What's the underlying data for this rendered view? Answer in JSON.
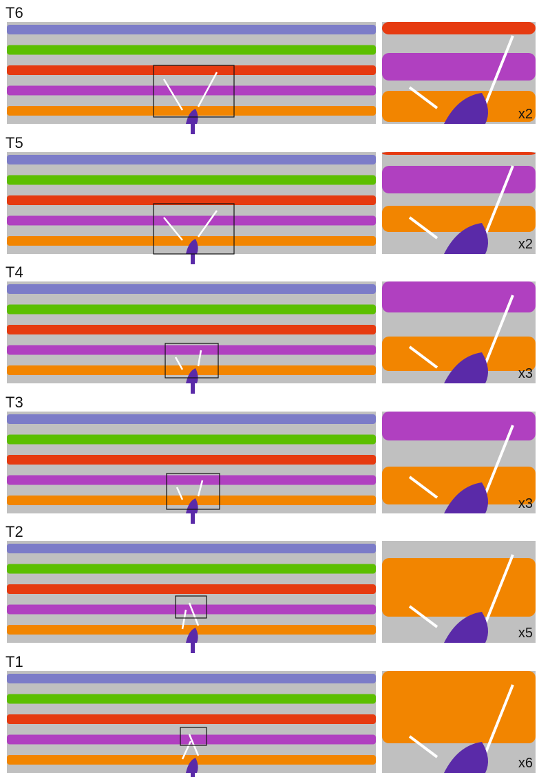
{
  "panels": [
    {
      "label": "T6",
      "zoom": "x2"
    },
    {
      "label": "T5",
      "zoom": "x2"
    },
    {
      "label": "T4",
      "zoom": "x3"
    },
    {
      "label": "T3",
      "zoom": "x3"
    },
    {
      "label": "T2",
      "zoom": "x5"
    },
    {
      "label": "T1",
      "zoom": "x6"
    }
  ]
}
